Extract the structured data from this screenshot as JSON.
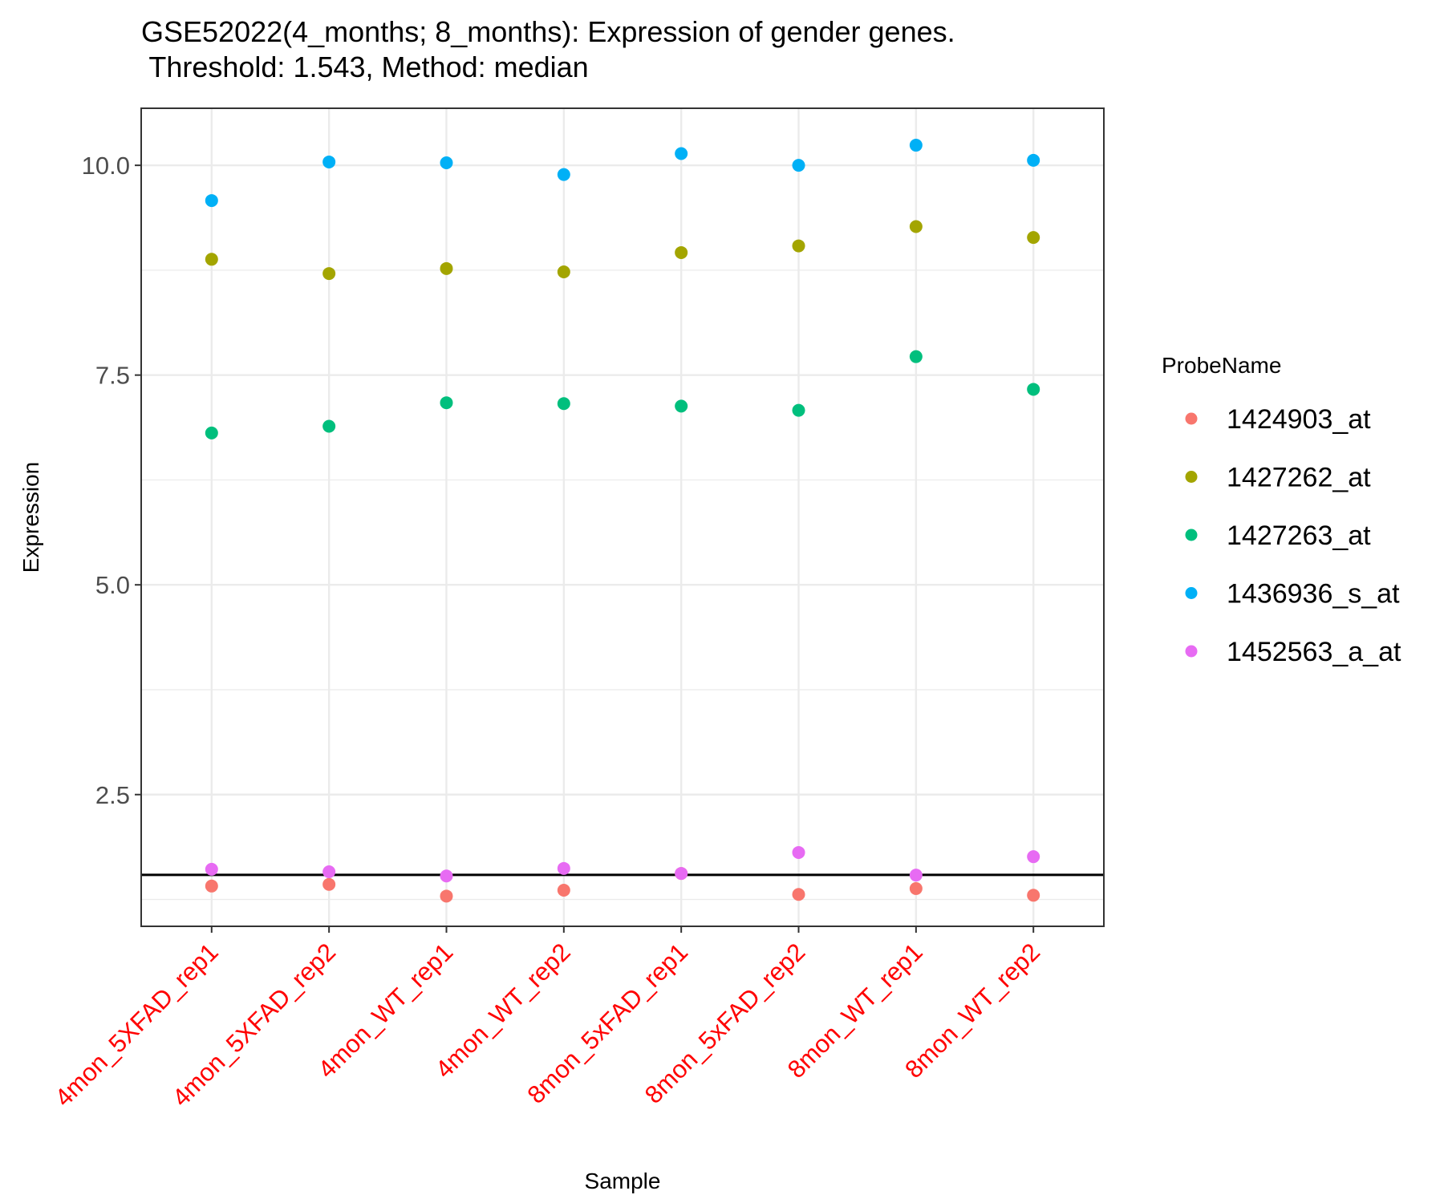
{
  "chart_data": {
    "type": "scatter",
    "title": "GSE52022(4_months; 8_months): Expression of gender genes.",
    "subtitle": " Threshold: 1.543, Method: median",
    "xlabel": "Sample",
    "ylabel": "Expression",
    "categories": [
      "4mon_5XFAD_rep1",
      "4mon_5XFAD_rep2",
      "4mon_WT_rep1",
      "4mon_WT_rep2",
      "8mon_5xFAD_rep1",
      "8mon_5xFAD_rep2",
      "8mon_WT_rep1",
      "8mon_WT_rep2"
    ],
    "ylim": [
      0.93,
      10.68
    ],
    "yticks": [
      2.5,
      5.0,
      7.5,
      10.0
    ],
    "ytick_labels": [
      "2.5",
      "5.0",
      "7.5",
      "10.0"
    ],
    "threshold": 1.543,
    "grid": true,
    "legend": {
      "title": "ProbeName",
      "position": "right"
    },
    "series": [
      {
        "name": "1424903_at",
        "color": "#F8766D",
        "values": [
          1.41,
          1.43,
          1.29,
          1.36,
          1.56,
          1.31,
          1.38,
          1.3
        ]
      },
      {
        "name": "1427262_at",
        "color": "#A3A500",
        "values": [
          8.88,
          8.71,
          8.77,
          8.73,
          8.96,
          9.04,
          9.27,
          9.14
        ]
      },
      {
        "name": "1427263_at",
        "color": "#00BF7D",
        "values": [
          6.81,
          6.89,
          7.17,
          7.16,
          7.13,
          7.08,
          7.72,
          7.33
        ]
      },
      {
        "name": "1436936_s_at",
        "color": "#00B0F6",
        "values": [
          9.58,
          10.04,
          10.03,
          9.89,
          10.14,
          10.0,
          10.24,
          10.06
        ]
      },
      {
        "name": "1452563_a_at",
        "color": "#E76BF3",
        "values": [
          1.61,
          1.58,
          1.53,
          1.62,
          1.56,
          1.81,
          1.54,
          1.76
        ]
      }
    ]
  }
}
